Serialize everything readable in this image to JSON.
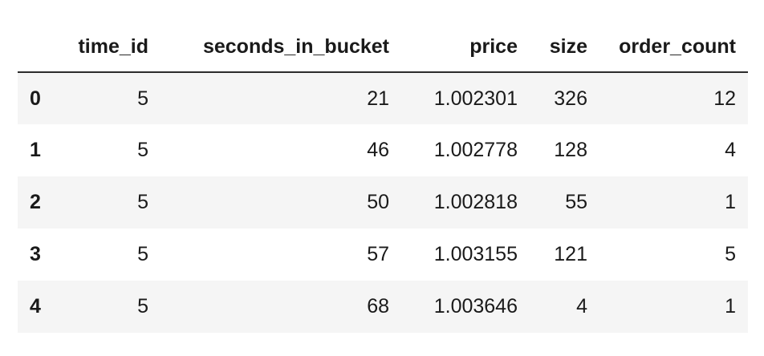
{
  "table": {
    "columns": [
      "",
      "time_id",
      "seconds_in_bucket",
      "price",
      "size",
      "order_count"
    ],
    "rows": [
      {
        "index": "0",
        "time_id": "5",
        "seconds_in_bucket": "21",
        "price": "1.002301",
        "size": "326",
        "order_count": "12"
      },
      {
        "index": "1",
        "time_id": "5",
        "seconds_in_bucket": "46",
        "price": "1.002778",
        "size": "128",
        "order_count": "4"
      },
      {
        "index": "2",
        "time_id": "5",
        "seconds_in_bucket": "50",
        "price": "1.002818",
        "size": "55",
        "order_count": "1"
      },
      {
        "index": "3",
        "time_id": "5",
        "seconds_in_bucket": "57",
        "price": "1.003155",
        "size": "121",
        "order_count": "5"
      },
      {
        "index": "4",
        "time_id": "5",
        "seconds_in_bucket": "68",
        "price": "1.003646",
        "size": "4",
        "order_count": "1"
      }
    ]
  }
}
